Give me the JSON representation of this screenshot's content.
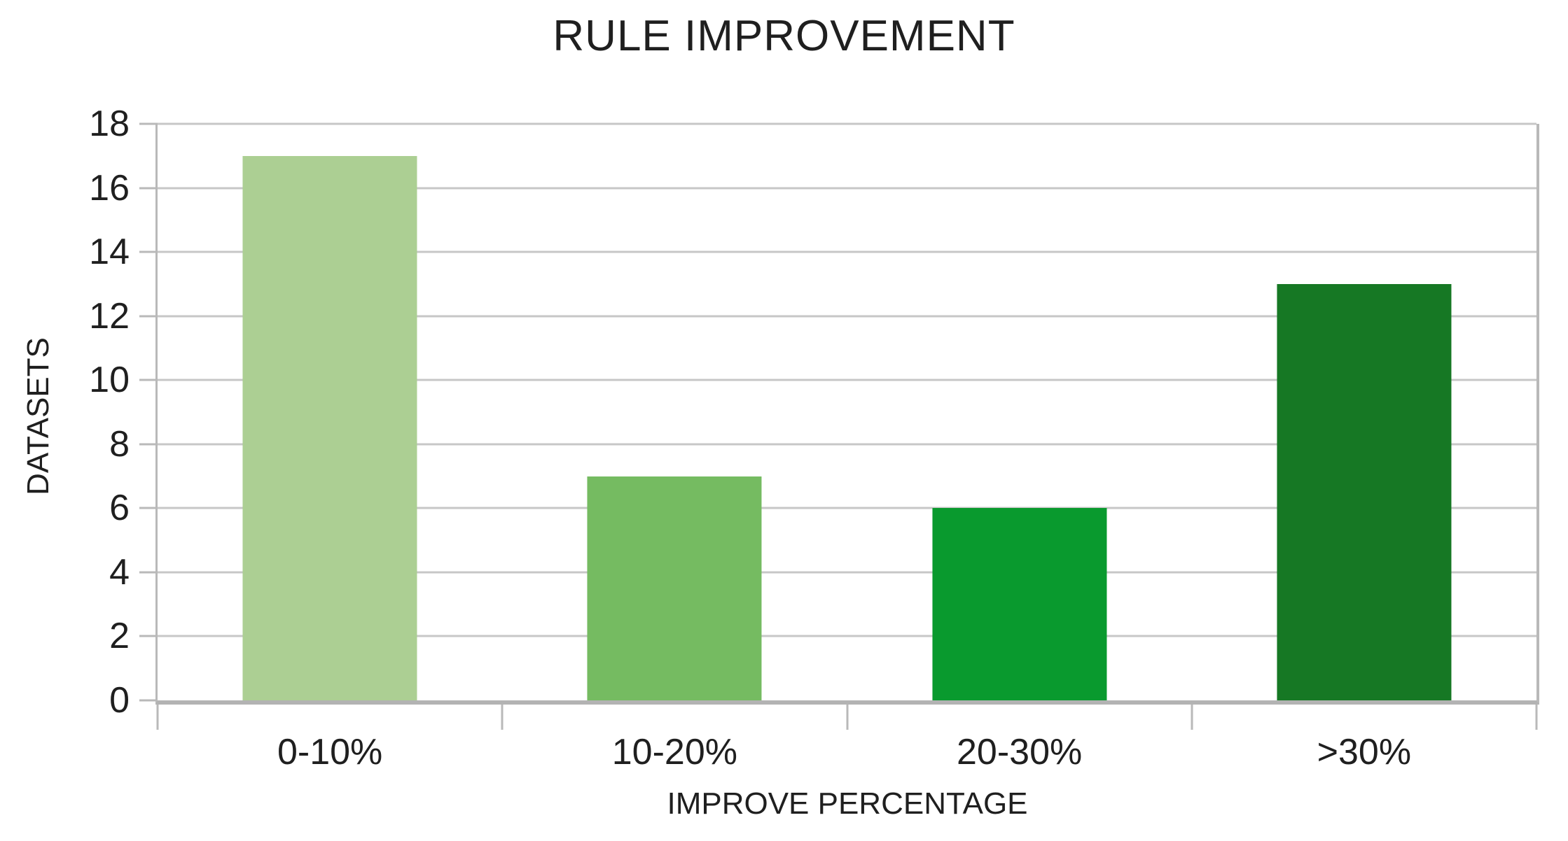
{
  "chart_data": {
    "type": "bar",
    "title": "RULE IMPROVEMENT",
    "xlabel": "IMPROVE PERCENTAGE",
    "ylabel": "DATASETS",
    "categories": [
      "0-10%",
      "10-20%",
      "20-30%",
      ">30%"
    ],
    "values": [
      17,
      7,
      6,
      13
    ],
    "bar_colors": [
      "#accf93",
      "#75bb61",
      "#099a2e",
      "#167824"
    ],
    "ylim": [
      0,
      18
    ],
    "yticks": [
      0,
      2,
      4,
      6,
      8,
      10,
      12,
      14,
      16,
      18
    ],
    "grid": "horizontal-on",
    "legend": "none",
    "background": "#ffffff"
  },
  "colors": {
    "text": "#1f1f1f",
    "gridline": "#c7c7c7",
    "axis_line": "#b9b9b9",
    "baseline": "#b3b3b3"
  }
}
